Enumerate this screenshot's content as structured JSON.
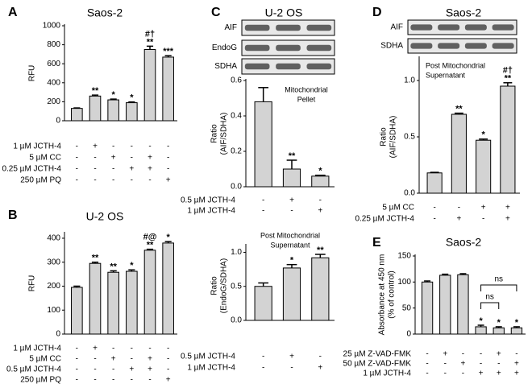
{
  "chart_data": [
    {
      "type": "bar",
      "panel": "A",
      "title": "Saos-2",
      "ylabel": [
        "RFU"
      ],
      "color": "#d3d3d3",
      "ylim": [
        0,
        1000
      ],
      "yticks": [
        0,
        200,
        400,
        600,
        800,
        1000
      ],
      "values": [
        130,
        260,
        220,
        190,
        750,
        670
      ],
      "errors": [
        5,
        10,
        8,
        8,
        35,
        15
      ],
      "significance": [
        null,
        [
          "**"
        ],
        [
          "*"
        ],
        [
          "*"
        ],
        [
          "#†",
          "**"
        ],
        [
          "***"
        ]
      ],
      "conditions": [
        {
          "label": "1 µM JCTH-4",
          "signs": [
            "-",
            "+",
            "-",
            "-",
            "-",
            "-"
          ]
        },
        {
          "label": "5 µM CC",
          "signs": [
            "-",
            "-",
            "+",
            "-",
            "+",
            "-"
          ]
        },
        {
          "label": "0.25 µM JCTH-4",
          "signs": [
            "-",
            "-",
            "-",
            "+",
            "+",
            "-"
          ]
        },
        {
          "label": "250 µM PQ",
          "signs": [
            "-",
            "-",
            "-",
            "-",
            "-",
            "+"
          ]
        }
      ]
    },
    {
      "type": "bar",
      "panel": "B",
      "title": "U-2 OS",
      "ylabel": [
        "RFU"
      ],
      "color": "#d3d3d3",
      "ylim": [
        0,
        420
      ],
      "yticks": [
        0,
        100,
        200,
        300,
        400
      ],
      "values": [
        195,
        295,
        258,
        262,
        350,
        380
      ],
      "errors": [
        5,
        5,
        6,
        6,
        4,
        6
      ],
      "significance": [
        null,
        [
          "**"
        ],
        [
          "**"
        ],
        [
          "*"
        ],
        [
          "#@",
          "**"
        ],
        [
          "*"
        ]
      ],
      "conditions": [
        {
          "label": "1 µM JCTH-4",
          "signs": [
            "-",
            "+",
            "-",
            "-",
            "-",
            "-"
          ]
        },
        {
          "label": "5 µM CC",
          "signs": [
            "-",
            "-",
            "+",
            "-",
            "+",
            "-"
          ]
        },
        {
          "label": "0.5 µM JCTH-4",
          "signs": [
            "-",
            "-",
            "-",
            "+",
            "+",
            "-"
          ]
        },
        {
          "label": "250 µM PQ",
          "signs": [
            "-",
            "-",
            "-",
            "-",
            "-",
            "+"
          ]
        }
      ]
    },
    {
      "type": "bar",
      "panel": "C",
      "title": "U-2 OS",
      "blot_labels": [
        "AIF",
        "EndoG",
        "SDHA"
      ],
      "ylabel": [
        "Ratio",
        "(AIF/SDHA)"
      ],
      "annotation": [
        "Mitochondrial",
        "Pellet"
      ],
      "color": "#d3d3d3",
      "ylim": [
        0,
        0.6
      ],
      "yticks": [
        {
          "value": 0,
          "label": "0.0"
        },
        0.2,
        0.4,
        0.6
      ],
      "values": [
        0.48,
        0.1,
        0.06
      ],
      "errors": [
        0.08,
        0.05,
        0.005
      ],
      "significance": [
        null,
        [
          "**"
        ],
        [
          "*"
        ]
      ],
      "conditions": [
        {
          "label": "0.5 µM JCTH-4",
          "signs": [
            "-",
            "+",
            "-"
          ]
        },
        {
          "label": "1 µM JCTH-4",
          "signs": [
            "-",
            "-",
            "+"
          ]
        }
      ]
    },
    {
      "type": "bar",
      "ylabel": [
        "Ratio",
        "(EndoG/SDHA)"
      ],
      "annotation": [
        "Post Mitochondrial",
        "Supernatant"
      ],
      "color": "#d3d3d3",
      "ylim": [
        0,
        1.1
      ],
      "yticks": [
        {
          "value": 0,
          "label": "0.0"
        },
        0.5,
        {
          "value": 1,
          "label": "1.0"
        }
      ],
      "values": [
        0.5,
        0.77,
        0.92
      ],
      "errors": [
        0.05,
        0.05,
        0.05
      ],
      "significance": [
        null,
        [
          "*"
        ],
        [
          "**"
        ]
      ],
      "conditions": [
        {
          "label": "0.5 µM JCTH-4",
          "signs": [
            "-",
            "+",
            "-"
          ]
        },
        {
          "label": "1 µM JCTH-4",
          "signs": [
            "-",
            "-",
            "+"
          ]
        }
      ]
    },
    {
      "type": "bar",
      "panel": "D",
      "title": "Saos-2",
      "blot_labels": [
        "AIF",
        "SDHA"
      ],
      "ylabel": [
        "Ratio",
        "(AIF/SDHA)"
      ],
      "annotation": [
        "Post Mitochondrial",
        "Supernatant"
      ],
      "color": "#d3d3d3",
      "ylim": [
        0,
        1.2
      ],
      "yticks": [
        {
          "value": 0,
          "label": "0.0"
        },
        0.5,
        {
          "value": 1,
          "label": "1.0"
        }
      ],
      "values": [
        0.18,
        0.7,
        0.47,
        0.95
      ],
      "errors": [
        0.005,
        0.01,
        0.01,
        0.03
      ],
      "significance": [
        null,
        [
          "**"
        ],
        [
          "*"
        ],
        [
          "#†",
          "**"
        ]
      ],
      "conditions": [
        {
          "label": "5 µM CC",
          "signs": [
            "-",
            "-",
            "+",
            "+"
          ]
        },
        {
          "label": "0.25 µM JCTH-4",
          "signs": [
            "-",
            "+",
            "-",
            "+"
          ]
        }
      ]
    },
    {
      "type": "bar",
      "panel": "E",
      "title": "Saos-2",
      "ylabel": [
        "Absorbance at 450 nm",
        "(% of control)"
      ],
      "color": "#d3d3d3",
      "ylim": [
        0,
        150
      ],
      "yticks": [
        0,
        50,
        100,
        150
      ],
      "values": [
        100,
        113,
        114,
        14,
        12,
        12
      ],
      "errors": [
        2,
        2,
        2,
        3,
        2,
        2
      ],
      "significance": [
        null,
        null,
        null,
        [
          "*"
        ],
        [
          "*"
        ],
        [
          "*"
        ]
      ],
      "comparisons": [
        "ns",
        "ns"
      ],
      "conditions": [
        {
          "label": "25 µM Z-VAD-FMK",
          "signs": [
            "-",
            "+",
            "-",
            "-",
            "+",
            "-"
          ]
        },
        {
          "label": "50 µM Z-VAD-FMK",
          "signs": [
            "-",
            "-",
            "+",
            "-",
            "-",
            "+"
          ]
        },
        {
          "label": "1 µM JCTH-4",
          "signs": [
            "-",
            "-",
            "-",
            "+",
            "+",
            "+"
          ]
        }
      ]
    }
  ]
}
